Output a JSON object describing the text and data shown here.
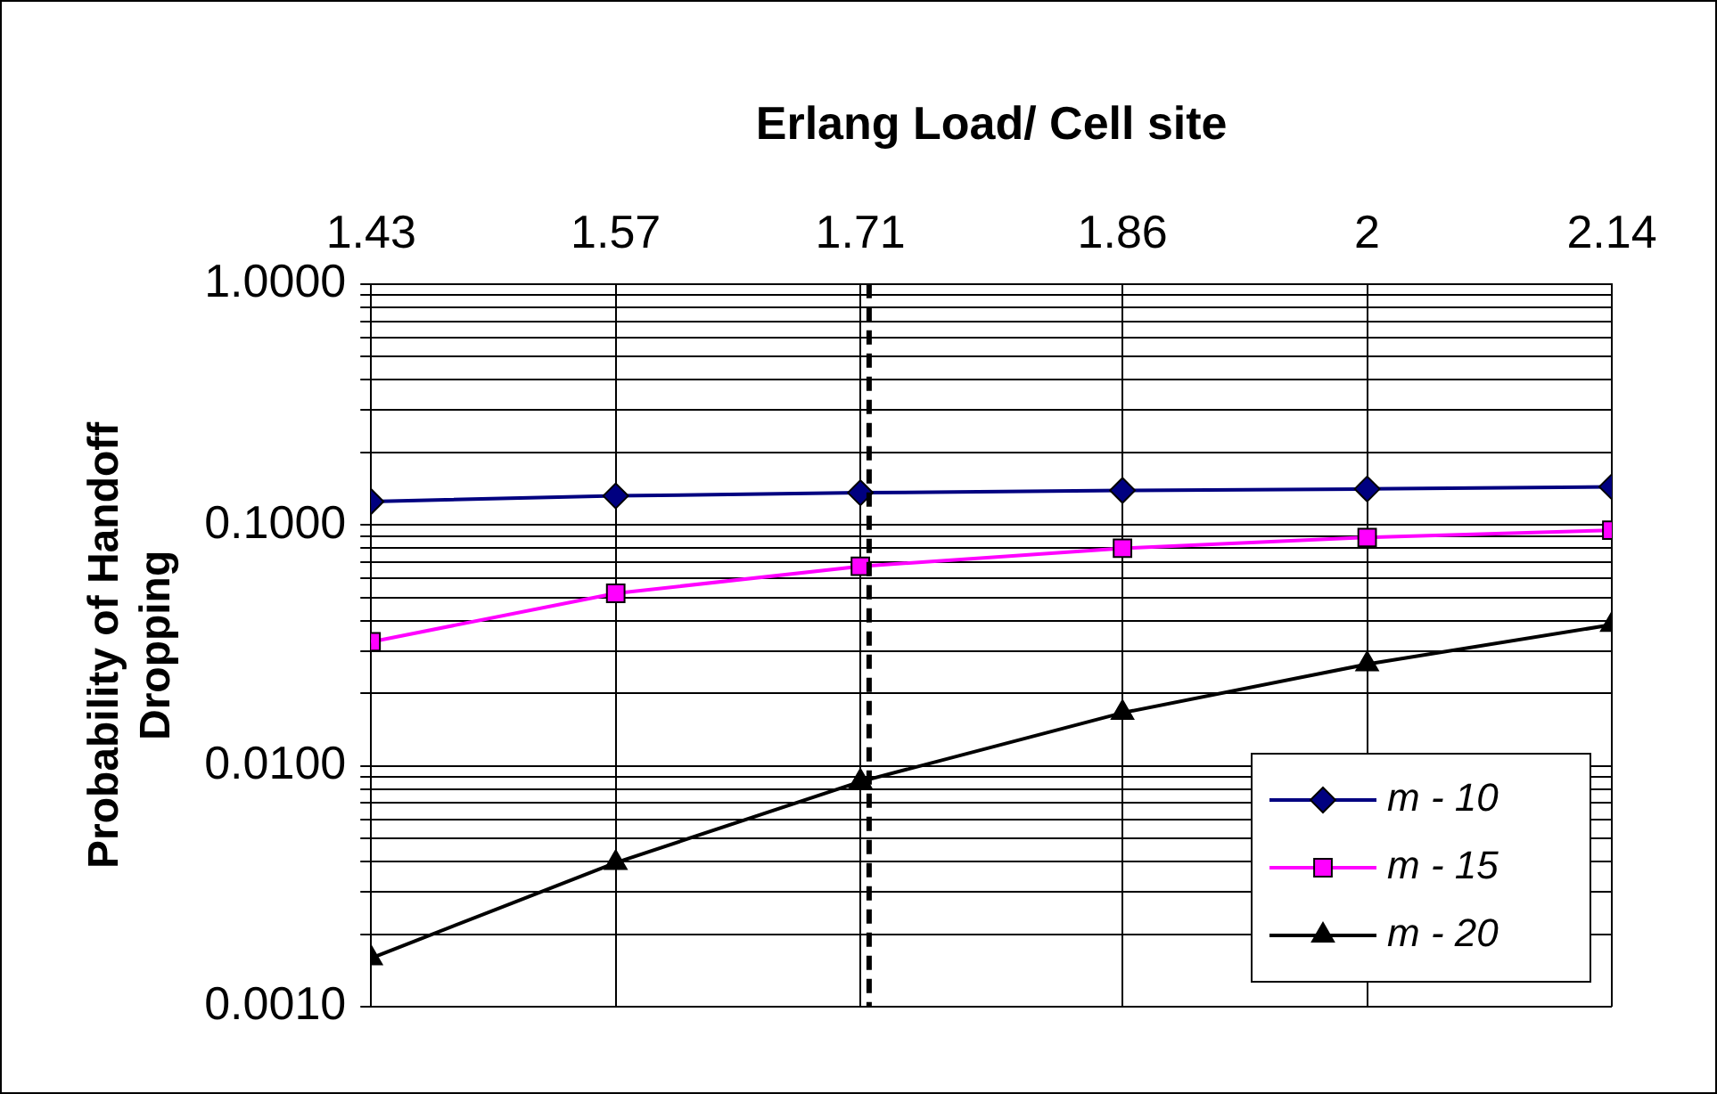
{
  "chart_data": {
    "type": "line",
    "xlabel": "Erlang Load/ Cell site",
    "ylabel": "Probability of Handoff Dropping",
    "x": [
      1.43,
      1.57,
      1.71,
      1.86,
      2,
      2.14
    ],
    "xlim": [
      1.43,
      2.14
    ],
    "xticks": [
      1.43,
      1.57,
      1.71,
      1.86,
      2,
      2.14
    ],
    "log": "y",
    "ylim": [
      0.001,
      1
    ],
    "yticks": [
      {
        "value": 0.001,
        "label": "0.0010"
      },
      {
        "value": 0.002,
        "label": null
      },
      {
        "value": 0.003,
        "label": null
      },
      {
        "value": 0.004,
        "label": null
      },
      {
        "value": 0.005,
        "label": null
      },
      {
        "value": 0.006,
        "label": null
      },
      {
        "value": 0.007,
        "label": null
      },
      {
        "value": 0.008,
        "label": null
      },
      {
        "value": 0.009,
        "label": null
      },
      {
        "value": 0.01,
        "label": "0.0100"
      },
      {
        "value": 0.02,
        "label": null
      },
      {
        "value": 0.03,
        "label": null
      },
      {
        "value": 0.04,
        "label": null
      },
      {
        "value": 0.05,
        "label": null
      },
      {
        "value": 0.06,
        "label": null
      },
      {
        "value": 0.07,
        "label": null
      },
      {
        "value": 0.08,
        "label": null
      },
      {
        "value": 0.09,
        "label": null
      },
      {
        "value": 0.1,
        "label": "0.1000"
      },
      {
        "value": 0.2,
        "label": null
      },
      {
        "value": 0.3,
        "label": null
      },
      {
        "value": 0.4,
        "label": null
      },
      {
        "value": 0.5,
        "label": null
      },
      {
        "value": 0.6,
        "label": null
      },
      {
        "value": 0.7,
        "label": null
      },
      {
        "value": 0.8,
        "label": null
      },
      {
        "value": 0.9,
        "label": null
      },
      {
        "value": 1,
        "label": "1.0000"
      }
    ],
    "grid": true,
    "legend": "bottom right",
    "line_style": "solid",
    "ref_lines": [
      {
        "axis": "x",
        "value": 1.715,
        "line_style": "dashed",
        "color": "#000000"
      }
    ],
    "series": [
      {
        "name": "m - 10",
        "color": "#000080",
        "marker": "diamond",
        "values": [
          0.125,
          0.132,
          0.136,
          0.139,
          0.141,
          0.144
        ]
      },
      {
        "name": "m - 15",
        "color": "#ff00ff",
        "marker": "square",
        "values": [
          0.0327,
          0.052,
          0.0673,
          0.08,
          0.0887,
          0.095
        ]
      },
      {
        "name": "m - 20",
        "color": "#000000",
        "marker": "triangle",
        "values": [
          0.00159,
          0.00396,
          0.0086,
          0.0166,
          0.0264,
          0.0385
        ]
      }
    ]
  }
}
